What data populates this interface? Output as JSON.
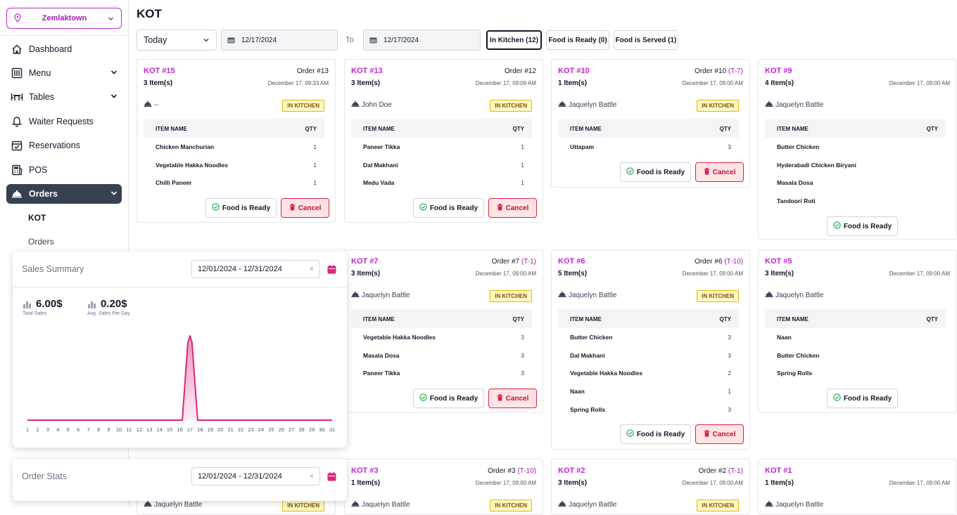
{
  "sidebar": {
    "location": "Zemlaktown",
    "nav": [
      {
        "label": "Dashboard",
        "icon": "dashboard-icon",
        "chevron": false
      },
      {
        "label": "Menu",
        "icon": "menu-icon",
        "chevron": true
      },
      {
        "label": "Tables",
        "icon": "tables-icon",
        "chevron": true
      },
      {
        "label": "Waiter Requests",
        "icon": "bell-icon",
        "chevron": false
      },
      {
        "label": "Reservations",
        "icon": "calendar-check-icon",
        "chevron": false
      },
      {
        "label": "POS",
        "icon": "pos-icon",
        "chevron": false
      },
      {
        "label": "Orders",
        "icon": "orders-icon",
        "chevron": true,
        "active": true
      }
    ],
    "sub": [
      "KOT",
      "Orders"
    ]
  },
  "header": {
    "title": "KOT",
    "period": "Today",
    "date_from": "12/17/2024",
    "to_label": "To",
    "date_to": "12/17/2024",
    "filters": [
      "In Kitchen (12)",
      "Food is Ready (0)",
      "Food is Served (1)"
    ]
  },
  "cards": [
    {
      "kot": "KOT #15",
      "items": "3 Item(s)",
      "order": "Order #13",
      "table": "",
      "date": "December 17, 09:33 AM",
      "waiter": "--",
      "status": "IN KITCHEN",
      "rows": [
        [
          "Chicken Manchurian",
          "1"
        ],
        [
          "Vegetable Hakka Noodles",
          "1"
        ],
        [
          "Chilli Paneer",
          "1"
        ]
      ]
    },
    {
      "kot": "KOT #13",
      "items": "3 Item(s)",
      "order": "Order #12",
      "table": "",
      "date": "December 17, 09:09 AM",
      "waiter": "John Doe",
      "status": "IN KITCHEN",
      "rows": [
        [
          "Paneer Tikka",
          "1"
        ],
        [
          "Dal Makhani",
          "1"
        ],
        [
          "Medu Vada",
          "1"
        ]
      ]
    },
    {
      "kot": "KOT #10",
      "items": "1 Item(s)",
      "order": "Order #10",
      "table": "(T-7)",
      "date": "December 17, 09:00 AM",
      "waiter": "Jaquelyn Battle",
      "status": "IN KITCHEN",
      "rows": [
        [
          "Uttapam",
          "3"
        ]
      ]
    },
    {
      "kot": "KOT #9",
      "items": "4 Item(s)",
      "order": "",
      "table": "",
      "date": "December 17, 09:00 AM",
      "waiter": "Jaquelyn Battle",
      "status": "",
      "rows": [
        [
          "Butter Chicken",
          ""
        ],
        [
          "Hyderabadi Chicken Biryani",
          ""
        ],
        [
          "Masala Dosa",
          ""
        ],
        [
          "Tandoori Roti",
          ""
        ]
      ]
    },
    {
      "kot": "KOT #7",
      "items": "3 Item(s)",
      "order": "Order #7",
      "table": "(T-1)",
      "date": "December 17, 09:00 AM",
      "waiter": "Jaquelyn Battle",
      "status": "IN KITCHEN",
      "rows": [
        [
          "Vegetable Hakka Noodles",
          "3"
        ],
        [
          "Masala Dosa",
          "3"
        ],
        [
          "Paneer Tikka",
          "3"
        ]
      ]
    },
    {
      "kot": "KOT #6",
      "items": "5 Item(s)",
      "order": "Order #6",
      "table": "(T-10)",
      "date": "December 17, 09:00 AM",
      "waiter": "Jaquelyn Battle",
      "status": "IN KITCHEN",
      "rows": [
        [
          "Butter Chicken",
          "3"
        ],
        [
          "Dal Makhani",
          "3"
        ],
        [
          "Vegetable Hakka Noodles",
          "2"
        ],
        [
          "Naan",
          "1"
        ],
        [
          "Spring Rolls",
          "3"
        ]
      ]
    },
    {
      "kot": "KOT #5",
      "items": "3 Item(s)",
      "order": "",
      "table": "",
      "date": "December 17, 09:00 AM",
      "waiter": "Jaquelyn Battle",
      "status": "",
      "rows": [
        [
          "Naan",
          ""
        ],
        [
          "Butter Chicken",
          ""
        ],
        [
          "Spring Rolls",
          ""
        ]
      ]
    },
    {
      "kot": "KOT #3",
      "items": "1 Item(s)",
      "order": "Order #3",
      "table": "(T-10)",
      "date": "December 17, 09:00 AM",
      "waiter": "Jaquelyn Battle",
      "status": "IN KITCHEN",
      "rows": []
    },
    {
      "kot": "KOT #2",
      "items": "3 Item(s)",
      "order": "Order #2",
      "table": "(T-1)",
      "date": "December 17, 09:00 AM",
      "waiter": "Jaquelyn Battle",
      "status": "IN KITCHEN",
      "rows": []
    },
    {
      "kot": "KOT #1",
      "items": "1 Item(s)",
      "order": "",
      "table": "",
      "date": "December 17, 09:00 AM",
      "waiter": "Jaquelyn Battle",
      "status": "",
      "rows": []
    },
    {
      "kot": "",
      "items": "",
      "order": "",
      "table": "",
      "date": "",
      "waiter": "Jaquelyn Battle",
      "status": "IN KITCHEN",
      "rows": []
    }
  ],
  "table_headers": {
    "name": "ITEM NAME",
    "qty": "QTY"
  },
  "buttons": {
    "ready": "Food is Ready",
    "cancel": "Cancel"
  },
  "sales_widget": {
    "title": "Sales Summary",
    "range": "12/01/2024  -  12/31/2024",
    "total_sales": "6.00$",
    "total_sales_label": "Total Sales",
    "avg_sales": "0.20$",
    "avg_sales_label": "Avg. Sales Per Day"
  },
  "stats_widget": {
    "title": "Order Stats",
    "range": "12/01/2024  -  12/31/2024"
  },
  "chart_data": {
    "type": "area",
    "x": [
      1,
      2,
      3,
      4,
      5,
      6,
      7,
      8,
      9,
      10,
      11,
      12,
      13,
      14,
      15,
      16,
      17,
      18,
      19,
      20,
      21,
      22,
      23,
      24,
      25,
      26,
      27,
      28,
      29,
      30,
      31
    ],
    "series": [
      {
        "values": [
          0,
          0,
          0,
          0,
          0,
          0,
          0,
          0,
          0,
          0,
          0,
          0,
          0,
          0,
          0,
          0,
          6,
          0,
          0,
          0,
          0,
          0,
          0,
          0,
          0,
          0,
          0,
          0,
          0,
          0,
          0
        ]
      }
    ],
    "ylim": [
      0,
      6.5
    ],
    "color": "#db2777",
    "grid": false
  },
  "colors": {
    "accent": "#c026d3",
    "badge": "#fef9c3",
    "cancel": "#e11d48",
    "active_nav": "#374151"
  }
}
